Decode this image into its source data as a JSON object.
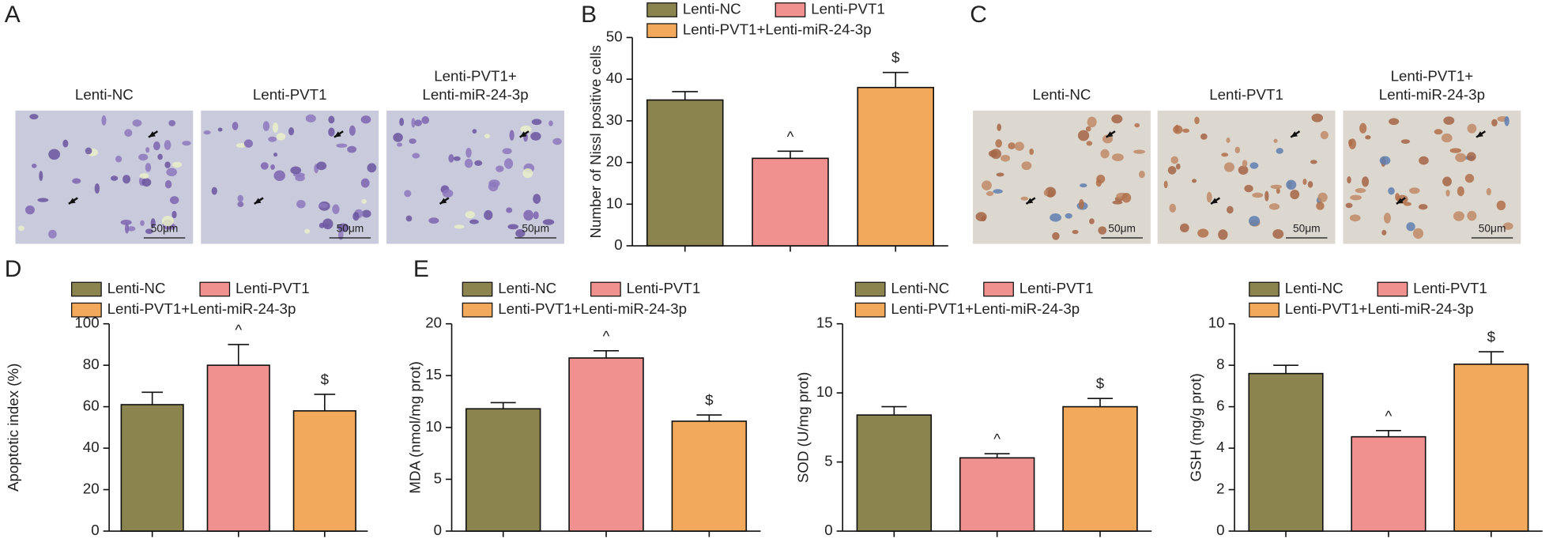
{
  "panel_labels": [
    "A",
    "B",
    "C",
    "D",
    "E"
  ],
  "micrographs": [
    {
      "images": [
        {
          "caption": [
            "Lenti-NC"
          ],
          "scale": "50μm"
        },
        {
          "caption": [
            "Lenti-PVT1"
          ],
          "scale": "50μm"
        },
        {
          "caption": [
            "Lenti-PVT1+",
            "Lenti-miR-24-3p"
          ],
          "scale": "50μm"
        }
      ]
    },
    {
      "images": [
        {
          "caption": [
            "Lenti-NC"
          ],
          "scale": "50μm"
        },
        {
          "caption": [
            "Lenti-PVT1"
          ],
          "scale": "50μm"
        },
        {
          "caption": [
            "Lenti-PVT1+",
            "Lenti-miR-24-3p"
          ],
          "scale": "50μm"
        }
      ]
    }
  ],
  "chart_data": [
    {
      "type": "bar",
      "ylabel": "Number of Nissl positive cells",
      "categories": [
        "Lenti-NC",
        "Lenti-PVT1",
        "Lenti-PVT1+Lenti-miR-24-3p"
      ],
      "colors": [
        "#8c844f",
        "#f0918f",
        "#f2a95b"
      ],
      "values": [
        35,
        21,
        38
      ],
      "errors": [
        2,
        1.7,
        3.6
      ],
      "annotations": [
        null,
        "^",
        "$"
      ],
      "ylim": [
        0,
        50
      ],
      "yticks": [
        0,
        10,
        20,
        30,
        40,
        50
      ]
    },
    {
      "type": "bar",
      "ylabel": "Apoptotic index (%)",
      "categories": [
        "Lenti-NC",
        "Lenti-PVT1",
        "Lenti-PVT1+Lenti-miR-24-3p"
      ],
      "colors": [
        "#8c844f",
        "#f0918f",
        "#f2a95b"
      ],
      "values": [
        61,
        80,
        58
      ],
      "errors": [
        6,
        10,
        8
      ],
      "annotations": [
        null,
        "^",
        "$"
      ],
      "ylim": [
        0,
        100
      ],
      "yticks": [
        0,
        20,
        40,
        60,
        80,
        100
      ]
    },
    {
      "type": "bar",
      "ylabel": "MDA (nmol/mg prot)",
      "categories": [
        "Lenti-NC",
        "Lenti-PVT1",
        "Lenti-PVT1+Lenti-miR-24-3p"
      ],
      "colors": [
        "#8c844f",
        "#f0918f",
        "#f2a95b"
      ],
      "values": [
        11.8,
        16.7,
        10.6
      ],
      "errors": [
        0.6,
        0.7,
        0.6
      ],
      "annotations": [
        null,
        "^",
        "$"
      ],
      "ylim": [
        0,
        20
      ],
      "yticks": [
        0,
        5,
        10,
        15,
        20
      ]
    },
    {
      "type": "bar",
      "ylabel": "SOD (U/mg prot)",
      "categories": [
        "Lenti-NC",
        "Lenti-PVT1",
        "Lenti-PVT1+Lenti-miR-24-3p"
      ],
      "colors": [
        "#8c844f",
        "#f0918f",
        "#f2a95b"
      ],
      "values": [
        8.4,
        5.3,
        9
      ],
      "errors": [
        0.6,
        0.3,
        0.6
      ],
      "annotations": [
        null,
        "^",
        "$"
      ],
      "ylim": [
        0,
        15
      ],
      "yticks": [
        0,
        5,
        10,
        15
      ]
    },
    {
      "type": "bar",
      "ylabel": "GSH (mg/g prot)",
      "categories": [
        "Lenti-NC",
        "Lenti-PVT1",
        "Lenti-PVT1+Lenti-miR-24-3p"
      ],
      "colors": [
        "#8c844f",
        "#f0918f",
        "#f2a95b"
      ],
      "values": [
        7.6,
        4.55,
        8.05
      ],
      "errors": [
        0.4,
        0.3,
        0.6
      ],
      "annotations": [
        null,
        "^",
        "$"
      ],
      "ylim": [
        0,
        10
      ],
      "yticks": [
        0,
        2,
        4,
        6,
        8,
        10
      ]
    }
  ]
}
